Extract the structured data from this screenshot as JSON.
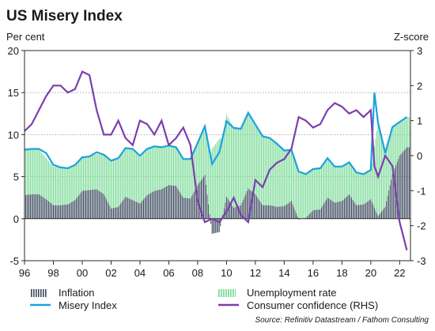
{
  "chart_data": {
    "type": "bar+line",
    "title": "US Misery Index",
    "ylabel_left": "Per cent",
    "ylabel_right": "Z-score",
    "source": "Source: Refinitiv Datastream / Fathom Consulting",
    "ylim_left": [
      -5,
      20
    ],
    "ylim_right": [
      -3,
      3
    ],
    "left_ticks": [
      "20",
      "15",
      "10",
      "5",
      "0",
      "-5"
    ],
    "right_ticks": [
      "3",
      "2",
      "1",
      "0",
      "-1",
      "-2",
      "-3"
    ],
    "x_ticks": [
      "96",
      "98",
      "00",
      "02",
      "04",
      "06",
      "08",
      "10",
      "12",
      "14",
      "16",
      "18",
      "20",
      "22"
    ],
    "x_range": [
      1996,
      2022.75
    ],
    "grid": "horizontal dotted",
    "legend": [
      "Inflation",
      "Unemployment rate",
      "Misery Index",
      "Consumer confidence (RHS)"
    ],
    "colors": {
      "inflation": "#3a4a5c",
      "unemployment": "#7fdc9a",
      "misery": "#1aa3df",
      "confidence": "#7b3fae",
      "grid": "#9a9a9a"
    },
    "series": [
      {
        "name": "Inflation",
        "x": [
          1996.0,
          1996.5,
          1997.0,
          1997.5,
          1998.0,
          1998.5,
          1999.0,
          1999.5,
          2000.0,
          2000.5,
          2001.0,
          2001.5,
          2002.0,
          2002.5,
          2003.0,
          2003.5,
          2004.0,
          2004.5,
          2005.0,
          2005.5,
          2006.0,
          2006.5,
          2007.0,
          2007.5,
          2008.0,
          2008.5,
          2009.0,
          2009.5,
          2010.0,
          2010.5,
          2011.0,
          2011.5,
          2012.0,
          2012.5,
          2013.0,
          2013.5,
          2014.0,
          2014.5,
          2015.0,
          2015.5,
          2016.0,
          2016.5,
          2017.0,
          2017.5,
          2018.0,
          2018.5,
          2019.0,
          2019.5,
          2020.0,
          2020.5,
          2021.0,
          2021.5,
          2022.0,
          2022.5
        ],
        "values": [
          2.8,
          2.9,
          2.9,
          2.3,
          1.6,
          1.6,
          1.7,
          2.2,
          3.3,
          3.4,
          3.5,
          2.9,
          1.2,
          1.4,
          2.6,
          2.2,
          1.8,
          2.8,
          3.3,
          3.5,
          4.0,
          3.9,
          2.5,
          2.4,
          4.0,
          5.2,
          -1.8,
          -1.6,
          2.6,
          1.3,
          1.6,
          3.6,
          2.9,
          1.6,
          1.6,
          1.4,
          1.5,
          2.1,
          -0.1,
          0.1,
          1.0,
          1.1,
          2.5,
          1.9,
          2.1,
          2.9,
          1.6,
          1.7,
          2.3,
          0.3,
          1.4,
          5.3,
          7.5,
          8.5
        ]
      },
      {
        "name": "Unemployment rate",
        "x": [
          1996.0,
          1996.5,
          1997.0,
          1997.5,
          1998.0,
          1998.5,
          1999.0,
          1999.5,
          2000.0,
          2000.5,
          2001.0,
          2001.5,
          2002.0,
          2002.5,
          2003.0,
          2003.5,
          2004.0,
          2004.5,
          2005.0,
          2005.5,
          2006.0,
          2006.5,
          2007.0,
          2007.5,
          2008.0,
          2008.5,
          2009.0,
          2009.5,
          2010.0,
          2010.5,
          2011.0,
          2011.5,
          2012.0,
          2012.5,
          2013.0,
          2013.5,
          2014.0,
          2014.5,
          2015.0,
          2015.5,
          2016.0,
          2016.5,
          2017.0,
          2017.5,
          2018.0,
          2018.5,
          2019.0,
          2019.5,
          2020.0,
          2020.5,
          2021.0,
          2021.5,
          2022.0,
          2022.5
        ],
        "values": [
          5.6,
          5.4,
          5.3,
          4.9,
          4.6,
          4.5,
          4.3,
          4.2,
          4.0,
          4.0,
          4.2,
          4.6,
          5.7,
          5.8,
          5.8,
          6.1,
          5.7,
          5.5,
          5.3,
          5.0,
          4.7,
          4.6,
          4.6,
          4.7,
          5.0,
          5.8,
          8.3,
          9.5,
          9.8,
          9.5,
          9.1,
          9.0,
          8.3,
          8.2,
          8.0,
          7.5,
          6.6,
          6.1,
          5.7,
          5.2,
          4.9,
          4.9,
          4.7,
          4.3,
          4.1,
          3.8,
          3.9,
          3.6,
          3.5,
          11.1,
          6.4,
          5.6,
          4.0,
          3.6
        ]
      },
      {
        "name": "Misery Index",
        "x": [
          1996.0,
          1996.5,
          1997.0,
          1997.5,
          1998.0,
          1998.5,
          1999.0,
          1999.5,
          2000.0,
          2000.5,
          2001.0,
          2001.5,
          2002.0,
          2002.5,
          2003.0,
          2003.5,
          2004.0,
          2004.5,
          2005.0,
          2005.5,
          2006.0,
          2006.5,
          2007.0,
          2007.5,
          2008.0,
          2008.5,
          2009.0,
          2009.5,
          2010.0,
          2010.5,
          2011.0,
          2011.5,
          2012.0,
          2012.5,
          2013.0,
          2013.5,
          2014.0,
          2014.5,
          2015.0,
          2015.5,
          2016.0,
          2016.5,
          2017.0,
          2017.5,
          2018.0,
          2018.5,
          2019.0,
          2019.5,
          2020.0,
          2020.25,
          2020.5,
          2021.0,
          2021.5,
          2022.0,
          2022.5
        ],
        "values": [
          8.2,
          8.3,
          8.3,
          7.8,
          6.4,
          6.1,
          6.0,
          6.4,
          7.3,
          7.4,
          7.9,
          7.6,
          6.9,
          7.2,
          8.4,
          8.3,
          7.5,
          8.3,
          8.6,
          8.5,
          8.7,
          8.5,
          7.1,
          7.1,
          9.0,
          11.0,
          6.5,
          7.9,
          11.6,
          10.8,
          10.7,
          12.6,
          11.2,
          9.8,
          9.6,
          8.9,
          8.1,
          8.2,
          5.6,
          5.3,
          5.9,
          6.0,
          7.2,
          6.2,
          6.2,
          6.7,
          5.5,
          5.3,
          5.8,
          15.0,
          11.4,
          7.8,
          10.9,
          11.5,
          12.1
        ]
      },
      {
        "name": "Consumer confidence (RHS)",
        "x": [
          1996.0,
          1996.5,
          1997.0,
          1997.5,
          1998.0,
          1998.5,
          1999.0,
          1999.5,
          2000.0,
          2000.5,
          2001.0,
          2001.5,
          2002.0,
          2002.5,
          2003.0,
          2003.5,
          2004.0,
          2004.5,
          2005.0,
          2005.5,
          2006.0,
          2006.5,
          2007.0,
          2007.5,
          2008.0,
          2008.5,
          2009.0,
          2009.5,
          2010.0,
          2010.5,
          2011.0,
          2011.5,
          2012.0,
          2012.5,
          2013.0,
          2013.5,
          2014.0,
          2014.5,
          2015.0,
          2015.5,
          2016.0,
          2016.5,
          2017.0,
          2017.5,
          2018.0,
          2018.5,
          2019.0,
          2019.5,
          2020.0,
          2020.25,
          2020.5,
          2021.0,
          2021.5,
          2022.0,
          2022.5
        ],
        "values": [
          0.7,
          0.9,
          1.3,
          1.7,
          2.0,
          2.0,
          1.8,
          1.9,
          2.4,
          2.3,
          1.3,
          0.6,
          0.6,
          1.0,
          0.5,
          0.3,
          1.0,
          0.9,
          0.6,
          1.0,
          0.3,
          0.5,
          0.8,
          0.3,
          -1.3,
          -1.9,
          -1.8,
          -1.9,
          -1.6,
          -1.2,
          -1.7,
          -1.9,
          -0.7,
          -0.9,
          -0.4,
          -0.2,
          -0.1,
          0.2,
          1.1,
          1.0,
          0.8,
          0.9,
          1.3,
          1.5,
          1.4,
          1.2,
          1.3,
          1.1,
          1.3,
          -0.3,
          -0.6,
          0.0,
          -0.3,
          -1.9,
          -2.7
        ]
      }
    ]
  }
}
